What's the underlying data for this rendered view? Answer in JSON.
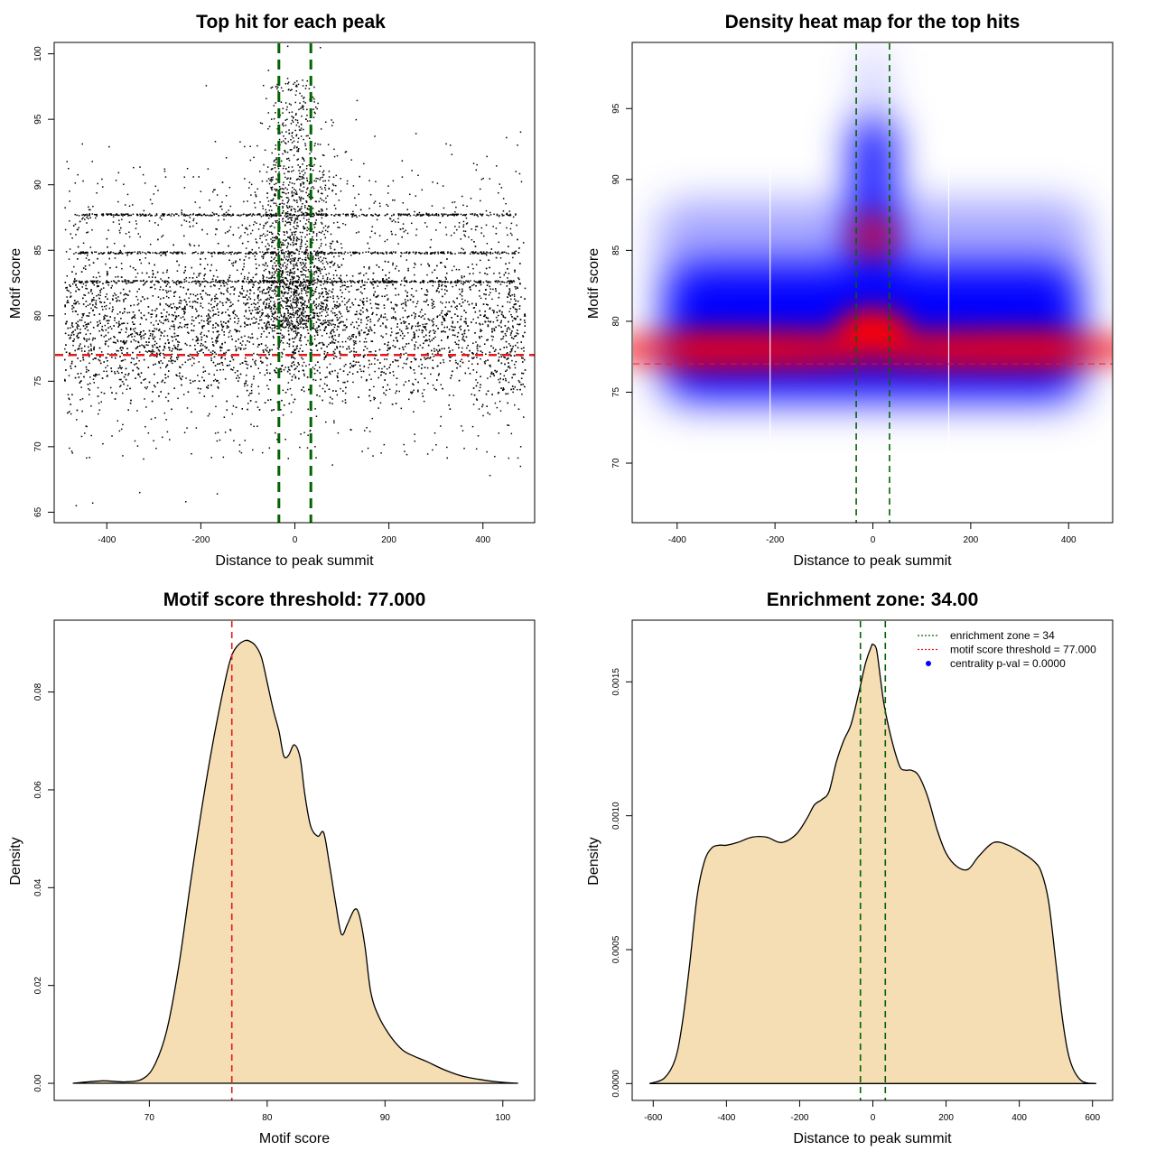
{
  "figure": {
    "colors": {
      "points": "#000000",
      "threshold": "#e31a1c",
      "zone": "#006400",
      "density_fill": "#f5deb3",
      "heat_low": "#ffffff",
      "heat_mid": "#0000ff",
      "heat_high": "#ff0000",
      "legend_dot": "#0000ff"
    }
  },
  "chart_data": [
    {
      "type": "scatter",
      "title": "Top hit for each peak",
      "xlabel": "Distance to peak summit",
      "ylabel": "Motif score",
      "xlim": [
        -510,
        510
      ],
      "ylim": [
        64.2,
        100.8
      ],
      "xticks": [
        -400,
        -200,
        0,
        200,
        400
      ],
      "yticks": [
        65,
        70,
        75,
        80,
        85,
        90,
        95,
        100
      ],
      "threshold_y": 77.0,
      "zone_x": [
        -34,
        34
      ],
      "point_cloud": {
        "x_range": [
          -490,
          490
        ],
        "baseline_mode": 78,
        "center_peak_max": 98,
        "dense_horizontal_bands_y": [
          82.6,
          84.8,
          87.7
        ]
      },
      "sample_points": [
        {
          "x": -465,
          "y": 65.5
        },
        {
          "x": -430,
          "y": 65.7
        },
        {
          "x": -330,
          "y": 66.5
        },
        {
          "x": -232,
          "y": 65.8
        },
        {
          "x": -165,
          "y": 66.4
        },
        {
          "x": 80,
          "y": 68.6
        },
        {
          "x": 415,
          "y": 67.8
        },
        {
          "x": 480,
          "y": 68.5
        },
        {
          "x": -395,
          "y": 92.9
        },
        {
          "x": 0,
          "y": 97.8
        },
        {
          "x": 18,
          "y": 96.6
        },
        {
          "x": -40,
          "y": 97.5
        },
        {
          "x": 450,
          "y": 93.6
        },
        {
          "x": 170,
          "y": 93.7
        }
      ]
    },
    {
      "type": "heatmap",
      "title": "Density heat map for the top hits",
      "xlabel": "Distance to peak summit",
      "ylabel": "Motif score",
      "xlim": [
        -490,
        490
      ],
      "ylim": [
        65.8,
        99.6
      ],
      "xticks": [
        -400,
        -200,
        0,
        200,
        400
      ],
      "yticks": [
        70,
        75,
        80,
        85,
        90,
        95
      ],
      "threshold_y": 77.0,
      "zone_x": [
        -34,
        34
      ],
      "hotspots": [
        {
          "x": 0,
          "y": 79.5,
          "level": 1.0
        },
        {
          "x": -300,
          "y": 78,
          "level": 0.65
        },
        {
          "x": 300,
          "y": 78,
          "level": 0.65
        },
        {
          "x": 0,
          "y": 86,
          "level": 0.55
        }
      ]
    },
    {
      "type": "area",
      "title": "Motif score threshold: 77.000",
      "xlabel": "Motif score",
      "ylabel": "Density",
      "xlim": [
        62.0,
        102.7
      ],
      "ylim": [
        -0.0035,
        0.0945
      ],
      "xticks": [
        70,
        80,
        90,
        100
      ],
      "yticks": [
        0.0,
        0.02,
        0.04,
        0.06,
        0.08
      ],
      "ytick_labels": [
        "0.00",
        "0.02",
        "0.04",
        "0.06",
        "0.08"
      ],
      "threshold_x": 77.0,
      "x": [
        63.5,
        66,
        68,
        69.5,
        70.5,
        71.5,
        72.5,
        73.5,
        74.5,
        75.5,
        76.5,
        77.0,
        77.5,
        78.1,
        78.5,
        79.0,
        79.5,
        80.0,
        80.5,
        81.0,
        81.4,
        81.8,
        82.3,
        82.8,
        83.2,
        83.7,
        84.3,
        84.8,
        85.3,
        85.8,
        86.3,
        86.8,
        87.4,
        87.8,
        88.3,
        88.8,
        89.5,
        90.5,
        91.5,
        92.5,
        93.5,
        95.0,
        96.5,
        98.0,
        99.5,
        101.3
      ],
      "values": [
        0.0,
        0.0005,
        0.0003,
        0.001,
        0.004,
        0.011,
        0.024,
        0.041,
        0.057,
        0.071,
        0.083,
        0.0875,
        0.0895,
        0.0905,
        0.0904,
        0.0895,
        0.0872,
        0.082,
        0.0765,
        0.072,
        0.067,
        0.067,
        0.0692,
        0.0665,
        0.059,
        0.0525,
        0.0505,
        0.0512,
        0.0445,
        0.037,
        0.0305,
        0.0325,
        0.0355,
        0.0345,
        0.028,
        0.0185,
        0.0135,
        0.0095,
        0.0068,
        0.0055,
        0.0045,
        0.0028,
        0.0015,
        0.0008,
        0.0003,
        0.0
      ]
    },
    {
      "type": "area",
      "title": "Enrichment zone: 34.00",
      "xlabel": "Distance to peak summit",
      "ylabel": "Density",
      "xlim": [
        -655,
        655
      ],
      "ylim": [
        -6.3e-05,
        0.001727
      ],
      "xticks": [
        -600,
        -400,
        -200,
        0,
        200,
        400,
        600
      ],
      "yticks": [
        0.0,
        0.0005,
        0.001,
        0.0015
      ],
      "ytick_labels": [
        "0.0000",
        "0.0005",
        "0.0010",
        "0.0015"
      ],
      "zone_x": [
        -34,
        34
      ],
      "x": [
        -610,
        -570,
        -540,
        -520,
        -500,
        -480,
        -460,
        -440,
        -420,
        -400,
        -370,
        -330,
        -290,
        -250,
        -210,
        -180,
        -160,
        -140,
        -120,
        -100,
        -80,
        -60,
        -40,
        -20,
        -5,
        0,
        10,
        20,
        30,
        45,
        60,
        75,
        90,
        105,
        125,
        150,
        175,
        200,
        230,
        260,
        290,
        330,
        370,
        410,
        440,
        460,
        480,
        500,
        520,
        540,
        570,
        610
      ],
      "values": [
        0.0,
        2e-05,
        9e-05,
        0.00023,
        0.00045,
        0.0007,
        0.00083,
        0.00088,
        0.00089,
        0.00089,
        0.0009,
        0.00092,
        0.00092,
        0.0009,
        0.00093,
        0.00099,
        0.00104,
        0.00106,
        0.00109,
        0.0012,
        0.00128,
        0.00134,
        0.00145,
        0.00157,
        0.00163,
        0.00164,
        0.00162,
        0.00152,
        0.00142,
        0.00132,
        0.00124,
        0.00118,
        0.00117,
        0.00117,
        0.00115,
        0.00107,
        0.00095,
        0.00086,
        0.00081,
        0.0008,
        0.00085,
        0.0009,
        0.00089,
        0.00086,
        0.00083,
        0.00079,
        0.00068,
        0.00045,
        0.00022,
        8e-05,
        1e-05,
        0.0
      ],
      "legend": {
        "position": "top-right",
        "items": [
          {
            "label": "enrichment zone = 34",
            "color": "#006400",
            "style": "dotted-line"
          },
          {
            "label": "motif score threshold = 77.000",
            "color": "#e31a1c",
            "style": "dotted-line"
          },
          {
            "label": "centrality p-val = 0.0000",
            "color": "#0000ff",
            "style": "dot"
          }
        ]
      }
    }
  ]
}
